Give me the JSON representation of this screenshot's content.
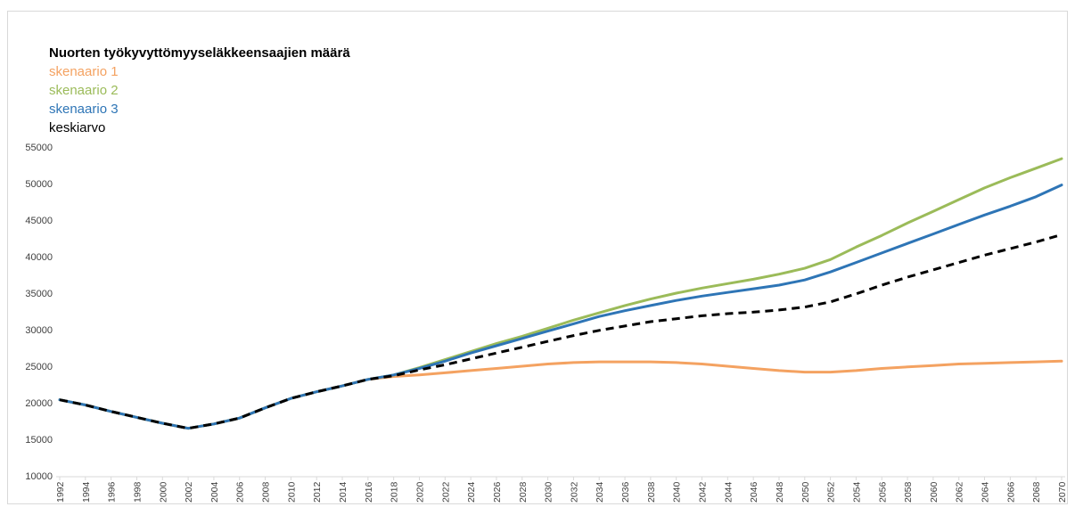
{
  "chart_data": {
    "type": "line",
    "title": "Nuorten työkyvyttömyyseläkkeensaajien määrä",
    "xlabel": "",
    "ylabel": "",
    "ylim": [
      10000,
      55000
    ],
    "xlim": [
      1992,
      2070
    ],
    "grid": false,
    "legend_placement": "top-left",
    "y_ticks": [
      "10000",
      "15000",
      "20000",
      "25000",
      "30000",
      "35000",
      "40000",
      "45000",
      "50000",
      "55000"
    ],
    "x_ticks": [
      "1992",
      "1994",
      "1996",
      "1998",
      "2000",
      "2002",
      "2004",
      "2006",
      "2008",
      "2010",
      "2012",
      "2014",
      "2016",
      "2018",
      "2020",
      "2022",
      "2024",
      "2026",
      "2028",
      "2030",
      "2032",
      "2034",
      "2036",
      "2038",
      "2040",
      "2042",
      "2044",
      "2046",
      "2048",
      "2050",
      "2052",
      "2054",
      "2056",
      "2058",
      "2060",
      "2062",
      "2064",
      "2066",
      "2068",
      "2070"
    ],
    "series": [
      {
        "name": "skenaario 1",
        "color": "#f4a261",
        "style": "solid",
        "points": [
          [
            1992,
            20400
          ],
          [
            1994,
            19700
          ],
          [
            1996,
            18800
          ],
          [
            1998,
            18000
          ],
          [
            2000,
            17200
          ],
          [
            2002,
            16500
          ],
          [
            2004,
            17100
          ],
          [
            2006,
            17900
          ],
          [
            2008,
            19300
          ],
          [
            2010,
            20600
          ],
          [
            2012,
            21500
          ],
          [
            2014,
            22300
          ],
          [
            2016,
            23200
          ],
          [
            2018,
            23600
          ],
          [
            2020,
            23800
          ],
          [
            2022,
            24100
          ],
          [
            2024,
            24400
          ],
          [
            2026,
            24700
          ],
          [
            2028,
            25000
          ],
          [
            2030,
            25300
          ],
          [
            2032,
            25500
          ],
          [
            2034,
            25600
          ],
          [
            2036,
            25600
          ],
          [
            2038,
            25600
          ],
          [
            2040,
            25500
          ],
          [
            2042,
            25300
          ],
          [
            2044,
            25000
          ],
          [
            2046,
            24700
          ],
          [
            2048,
            24400
          ],
          [
            2050,
            24200
          ],
          [
            2052,
            24200
          ],
          [
            2054,
            24400
          ],
          [
            2056,
            24700
          ],
          [
            2058,
            24900
          ],
          [
            2060,
            25100
          ],
          [
            2062,
            25300
          ],
          [
            2064,
            25400
          ],
          [
            2066,
            25500
          ],
          [
            2068,
            25600
          ],
          [
            2070,
            25700
          ]
        ]
      },
      {
        "name": "skenaario 2",
        "color": "#9bbb59",
        "style": "solid",
        "points": [
          [
            1992,
            20400
          ],
          [
            1994,
            19700
          ],
          [
            1996,
            18800
          ],
          [
            1998,
            18000
          ],
          [
            2000,
            17200
          ],
          [
            2002,
            16500
          ],
          [
            2004,
            17100
          ],
          [
            2006,
            17900
          ],
          [
            2008,
            19300
          ],
          [
            2010,
            20600
          ],
          [
            2012,
            21500
          ],
          [
            2014,
            22300
          ],
          [
            2016,
            23200
          ],
          [
            2018,
            23800
          ],
          [
            2020,
            24800
          ],
          [
            2022,
            25900
          ],
          [
            2024,
            27000
          ],
          [
            2026,
            28100
          ],
          [
            2028,
            29100
          ],
          [
            2030,
            30200
          ],
          [
            2032,
            31300
          ],
          [
            2034,
            32300
          ],
          [
            2036,
            33300
          ],
          [
            2038,
            34200
          ],
          [
            2040,
            35000
          ],
          [
            2042,
            35700
          ],
          [
            2044,
            36300
          ],
          [
            2046,
            36900
          ],
          [
            2048,
            37600
          ],
          [
            2050,
            38400
          ],
          [
            2052,
            39600
          ],
          [
            2054,
            41300
          ],
          [
            2056,
            42900
          ],
          [
            2058,
            44600
          ],
          [
            2060,
            46200
          ],
          [
            2062,
            47800
          ],
          [
            2064,
            49400
          ],
          [
            2066,
            50800
          ],
          [
            2068,
            52100
          ],
          [
            2070,
            53400
          ]
        ]
      },
      {
        "name": "skenaario 3",
        "color": "#2e75b6",
        "style": "solid",
        "points": [
          [
            1992,
            20400
          ],
          [
            1994,
            19700
          ],
          [
            1996,
            18800
          ],
          [
            1998,
            18000
          ],
          [
            2000,
            17200
          ],
          [
            2002,
            16500
          ],
          [
            2004,
            17100
          ],
          [
            2006,
            17900
          ],
          [
            2008,
            19300
          ],
          [
            2010,
            20600
          ],
          [
            2012,
            21500
          ],
          [
            2014,
            22300
          ],
          [
            2016,
            23200
          ],
          [
            2018,
            23800
          ],
          [
            2020,
            24700
          ],
          [
            2022,
            25700
          ],
          [
            2024,
            26800
          ],
          [
            2026,
            27800
          ],
          [
            2028,
            28800
          ],
          [
            2030,
            29800
          ],
          [
            2032,
            30800
          ],
          [
            2034,
            31800
          ],
          [
            2036,
            32600
          ],
          [
            2038,
            33300
          ],
          [
            2040,
            34000
          ],
          [
            2042,
            34600
          ],
          [
            2044,
            35100
          ],
          [
            2046,
            35600
          ],
          [
            2048,
            36100
          ],
          [
            2050,
            36800
          ],
          [
            2052,
            37900
          ],
          [
            2054,
            39200
          ],
          [
            2056,
            40500
          ],
          [
            2058,
            41800
          ],
          [
            2060,
            43100
          ],
          [
            2062,
            44400
          ],
          [
            2064,
            45700
          ],
          [
            2066,
            46900
          ],
          [
            2068,
            48200
          ],
          [
            2070,
            49800
          ]
        ]
      },
      {
        "name": "keskiarvo",
        "color": "#000000",
        "style": "dashed",
        "points": [
          [
            1992,
            20400
          ],
          [
            1994,
            19700
          ],
          [
            1996,
            18800
          ],
          [
            1998,
            18000
          ],
          [
            2000,
            17200
          ],
          [
            2002,
            16500
          ],
          [
            2004,
            17100
          ],
          [
            2006,
            17900
          ],
          [
            2008,
            19300
          ],
          [
            2010,
            20600
          ],
          [
            2012,
            21500
          ],
          [
            2014,
            22300
          ],
          [
            2016,
            23200
          ],
          [
            2018,
            23700
          ],
          [
            2020,
            24500
          ],
          [
            2022,
            25200
          ],
          [
            2024,
            26000
          ],
          [
            2026,
            26800
          ],
          [
            2028,
            27600
          ],
          [
            2030,
            28400
          ],
          [
            2032,
            29200
          ],
          [
            2034,
            29900
          ],
          [
            2036,
            30500
          ],
          [
            2038,
            31100
          ],
          [
            2040,
            31500
          ],
          [
            2042,
            31900
          ],
          [
            2044,
            32200
          ],
          [
            2046,
            32400
          ],
          [
            2048,
            32700
          ],
          [
            2050,
            33100
          ],
          [
            2052,
            33800
          ],
          [
            2054,
            34900
          ],
          [
            2056,
            36100
          ],
          [
            2058,
            37200
          ],
          [
            2060,
            38200
          ],
          [
            2062,
            39200
          ],
          [
            2064,
            40200
          ],
          [
            2066,
            41100
          ],
          [
            2068,
            42000
          ],
          [
            2070,
            43000
          ]
        ]
      }
    ]
  }
}
